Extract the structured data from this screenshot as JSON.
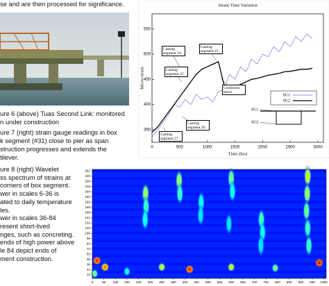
{
  "intro": "se and are then processed for significance.",
  "captions": [
    [
      "ure 6 (above) Tuas Second Link: monitored",
      "n under construction"
    ],
    [
      "ure 7 (right) strain gauge readings in box",
      "k segment (#31) close to pier as span",
      "struction progresses and extends the",
      "tilever."
    ],
    [
      "ure 8 (right) Wavelet",
      "ss spectrum of strains at",
      " corners of box segment.",
      "wer in scales 6-36 is",
      "ated to daily temperature",
      "les.",
      "wer in scales 36-84",
      "resent short-lived",
      "nges, such as concreting.",
      "ends of high power above",
      "le 84 depict ends of",
      "ment construction."
    ]
  ],
  "chart_data": [
    {
      "type": "line",
      "title": "Strain-Time Variation",
      "xlabel": "Time (hrs)",
      "ylabel": "Micro-strain",
      "x": [
        0,
        100,
        200,
        300,
        400,
        500,
        600,
        700,
        800,
        900,
        1000,
        1100,
        1200,
        1300,
        1400,
        1500,
        1600,
        1700,
        1800,
        1900,
        2000,
        2100,
        2200,
        2300,
        2400,
        2500,
        2600,
        2700,
        2800,
        2900
      ],
      "series": [
        {
          "name": "SG1",
          "color": "#5a5ad8",
          "values": [
            335,
            350,
            365,
            380,
            400,
            395,
            410,
            400,
            420,
            410,
            415,
            405,
            425,
            430,
            460,
            450,
            475,
            465,
            490,
            480,
            500,
            495,
            515,
            505,
            525,
            515,
            535,
            525,
            540,
            530
          ]
        },
        {
          "name": "SG2",
          "color": "#000000",
          "values": [
            345,
            355,
            370,
            385,
            400,
            415,
            430,
            445,
            460,
            470,
            475,
            480,
            485,
            440,
            430,
            435,
            440,
            445,
            450,
            452,
            455,
            458,
            460,
            462,
            465,
            466,
            468,
            470,
            470,
            472
          ]
        }
      ],
      "xlim": [
        0,
        3100
      ],
      "ylim": [
        325,
        580
      ],
      "xticks": [
        0,
        500,
        1000,
        1500,
        2000,
        2500,
        3000
      ],
      "yticks": [
        350,
        400,
        450,
        500,
        550
      ],
      "annotations": [
        "Casting segment 24",
        "Casting segment 23",
        "Casting segment 25",
        "Continuity stitch",
        "Casting segment 26",
        "Casting segment 27"
      ]
    },
    {
      "type": "heatmap",
      "colormap": "jet",
      "xlim": [
        0,
        1010
      ],
      "ylim": [
        4,
        256
      ],
      "xticks": [
        0,
        50,
        100,
        150,
        200,
        250,
        300,
        350,
        400,
        450,
        500,
        550,
        600,
        650,
        700,
        750,
        800,
        850,
        900,
        950,
        1000
      ],
      "yticks": [
        12,
        24,
        36,
        48,
        60,
        72,
        84,
        96,
        108,
        120,
        132,
        144,
        156,
        168,
        180,
        192,
        204,
        216,
        228,
        240,
        252
      ],
      "spots": [
        {
          "x": 230,
          "scale": 200,
          "power": 0.55
        },
        {
          "x": 232,
          "scale": 170,
          "power": 0.45
        },
        {
          "x": 228,
          "scale": 140,
          "power": 0.4
        },
        {
          "x": 375,
          "scale": 230,
          "power": 0.55
        },
        {
          "x": 378,
          "scale": 200,
          "power": 0.45
        },
        {
          "x": 470,
          "scale": 180,
          "power": 0.4
        },
        {
          "x": 468,
          "scale": 150,
          "power": 0.35
        },
        {
          "x": 600,
          "scale": 235,
          "power": 0.5
        },
        {
          "x": 605,
          "scale": 205,
          "power": 0.4
        },
        {
          "x": 590,
          "scale": 130,
          "power": 0.35
        },
        {
          "x": 730,
          "scale": 140,
          "power": 0.45
        },
        {
          "x": 735,
          "scale": 110,
          "power": 0.4
        },
        {
          "x": 728,
          "scale": 80,
          "power": 0.35
        },
        {
          "x": 930,
          "scale": 240,
          "power": 0.6
        },
        {
          "x": 928,
          "scale": 200,
          "power": 0.55
        },
        {
          "x": 925,
          "scale": 160,
          "power": 0.5
        },
        {
          "x": 930,
          "scale": 120,
          "power": 0.45
        },
        {
          "x": 935,
          "scale": 80,
          "power": 0.45
        },
        {
          "x": 20,
          "scale": 45,
          "power": 0.9
        },
        {
          "x": 55,
          "scale": 30,
          "power": 0.8
        },
        {
          "x": 300,
          "scale": 30,
          "power": 0.6
        },
        {
          "x": 420,
          "scale": 25,
          "power": 0.9
        },
        {
          "x": 600,
          "scale": 30,
          "power": 0.6
        },
        {
          "x": 790,
          "scale": 28,
          "power": 0.5
        },
        {
          "x": 980,
          "scale": 40,
          "power": 0.95
        },
        {
          "x": 10,
          "scale": 15,
          "power": 0.5
        },
        {
          "x": 150,
          "scale": 20,
          "power": 0.4
        }
      ]
    }
  ]
}
